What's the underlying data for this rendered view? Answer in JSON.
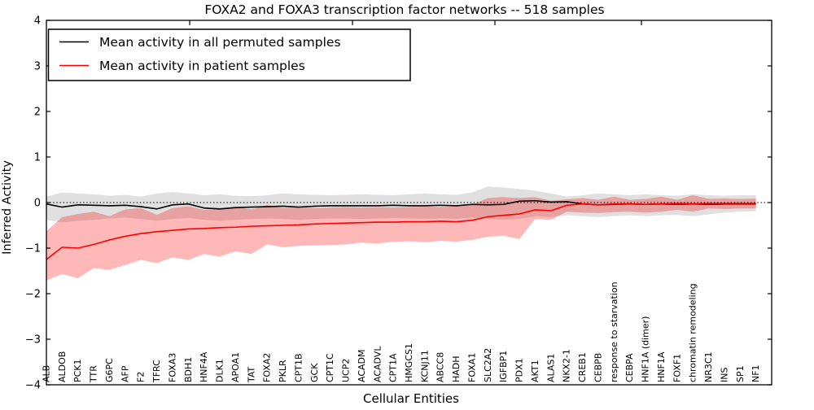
{
  "chart_data": {
    "type": "line",
    "title": "FOXA2 and FOXA3 transcription factor networks -- 518 samples",
    "xlabel": "Cellular Entities",
    "ylabel": "Inferred Activity",
    "ylim": [
      -4,
      4
    ],
    "yticks": [
      4,
      3,
      2,
      1,
      0,
      -1,
      -2,
      -3,
      -4
    ],
    "ytick_labels": [
      "4",
      "3",
      "2",
      "1",
      "0",
      "−1",
      "−2",
      "−3",
      "−4"
    ],
    "grid": false,
    "zero_line_style": "dotted",
    "legend_position": "upper left",
    "categories": [
      "ALB",
      "ALDOB",
      "PCK1",
      "TTR",
      "G6PC",
      "AFP",
      "F2",
      "TFRC",
      "FOXA3",
      "BDH1",
      "HNF4A",
      "DLK1",
      "APOA1",
      "TAT",
      "FOXA2",
      "PKLR",
      "CPT1B",
      "GCK",
      "CPT1C",
      "UCP2",
      "ACADM",
      "ACADVL",
      "CPT1A",
      "HMGCS1",
      "KCNJ11",
      "ABCC8",
      "HADH",
      "FOXA1",
      "SLC2A2",
      "IGFBP1",
      "PDX1",
      "AKT1",
      "ALAS1",
      "NKX2-1",
      "CREB1",
      "CEBPB",
      "response to starvation",
      "CEBPA",
      "HNF1A (dimer)",
      "HNF1A",
      "FOXF1",
      "chromatin remodeling",
      "NR3C1",
      "INS",
      "SP1",
      "NF1"
    ],
    "series": [
      {
        "name": "Mean activity in all permuted samples",
        "color": "#000000",
        "values": [
          -0.03,
          -0.1,
          -0.05,
          -0.06,
          -0.07,
          -0.06,
          -0.09,
          -0.14,
          -0.05,
          -0.03,
          -0.12,
          -0.14,
          -0.11,
          -0.1,
          -0.09,
          -0.08,
          -0.1,
          -0.08,
          -0.07,
          -0.07,
          -0.07,
          -0.07,
          -0.06,
          -0.07,
          -0.07,
          -0.06,
          -0.07,
          -0.04,
          -0.05,
          -0.04,
          0.03,
          0.04,
          0.01,
          0.02,
          -0.03,
          -0.05,
          -0.04,
          -0.03,
          -0.04,
          -0.03,
          -0.04,
          -0.03,
          -0.04,
          -0.03,
          -0.03,
          -0.03
        ],
        "band": {
          "fill_color": "#000000",
          "fill_opacity": 0.12,
          "upper": [
            0.13,
            0.22,
            0.2,
            0.18,
            0.15,
            0.17,
            0.13,
            0.2,
            0.23,
            0.2,
            0.16,
            0.18,
            0.15,
            0.14,
            0.16,
            0.2,
            0.18,
            0.17,
            0.16,
            0.17,
            0.18,
            0.17,
            0.16,
            0.18,
            0.2,
            0.18,
            0.17,
            0.22,
            0.35,
            0.33,
            0.3,
            0.26,
            0.2,
            0.13,
            0.16,
            0.2,
            0.18,
            0.16,
            0.18,
            0.16,
            0.15,
            0.18,
            0.16,
            0.15,
            0.16,
            0.16
          ],
          "lower": [
            -0.38,
            -0.44,
            -0.4,
            -0.38,
            -0.35,
            -0.33,
            -0.36,
            -0.4,
            -0.36,
            -0.34,
            -0.38,
            -0.4,
            -0.38,
            -0.36,
            -0.35,
            -0.36,
            -0.38,
            -0.36,
            -0.35,
            -0.35,
            -0.36,
            -0.35,
            -0.34,
            -0.35,
            -0.36,
            -0.35,
            -0.36,
            -0.33,
            -0.36,
            -0.38,
            -0.36,
            -0.3,
            -0.32,
            -0.28,
            -0.3,
            -0.32,
            -0.3,
            -0.28,
            -0.3,
            -0.28,
            -0.27,
            -0.3,
            -0.26,
            -0.22,
            -0.2,
            -0.19
          ]
        }
      },
      {
        "name": "Mean activity in patient samples",
        "color": "#ff0000",
        "values": [
          -1.25,
          -0.98,
          -1.0,
          -0.92,
          -0.82,
          -0.74,
          -0.68,
          -0.64,
          -0.61,
          -0.58,
          -0.57,
          -0.55,
          -0.54,
          -0.52,
          -0.51,
          -0.5,
          -0.49,
          -0.47,
          -0.46,
          -0.45,
          -0.44,
          -0.43,
          -0.43,
          -0.42,
          -0.42,
          -0.41,
          -0.42,
          -0.39,
          -0.31,
          -0.28,
          -0.25,
          -0.16,
          -0.18,
          -0.06,
          -0.03,
          -0.05,
          -0.03,
          -0.03,
          -0.04,
          -0.03,
          -0.02,
          -0.03,
          -0.02,
          -0.02,
          -0.02,
          -0.02
        ],
        "band": {
          "fill_color": "#ff0000",
          "fill_opacity": 0.28,
          "upper": [
            -0.63,
            -0.32,
            -0.25,
            -0.2,
            -0.3,
            -0.15,
            -0.12,
            -0.27,
            -0.12,
            -0.08,
            -0.16,
            -0.14,
            -0.1,
            -0.15,
            -0.05,
            -0.12,
            -0.1,
            -0.12,
            -0.11,
            -0.1,
            -0.11,
            -0.1,
            -0.11,
            -0.1,
            -0.09,
            -0.1,
            -0.08,
            -0.05,
            0.1,
            0.12,
            0.1,
            0.12,
            0.04,
            0.07,
            0.1,
            0.06,
            0.13,
            0.06,
            0.08,
            0.13,
            0.06,
            0.16,
            0.08,
            0.09,
            0.08,
            0.09
          ],
          "lower": [
            -1.71,
            -1.57,
            -1.66,
            -1.44,
            -1.48,
            -1.37,
            -1.26,
            -1.33,
            -1.2,
            -1.26,
            -1.13,
            -1.19,
            -1.07,
            -1.13,
            -0.92,
            -0.98,
            -0.95,
            -0.94,
            -0.93,
            -0.92,
            -0.88,
            -0.9,
            -0.86,
            -0.85,
            -0.87,
            -0.84,
            -0.86,
            -0.82,
            -0.75,
            -0.73,
            -0.8,
            -0.36,
            -0.38,
            -0.2,
            -0.22,
            -0.23,
            -0.21,
            -0.2,
            -0.22,
            -0.2,
            -0.16,
            -0.2,
            -0.13,
            -0.14,
            -0.13,
            -0.13
          ]
        }
      }
    ]
  }
}
